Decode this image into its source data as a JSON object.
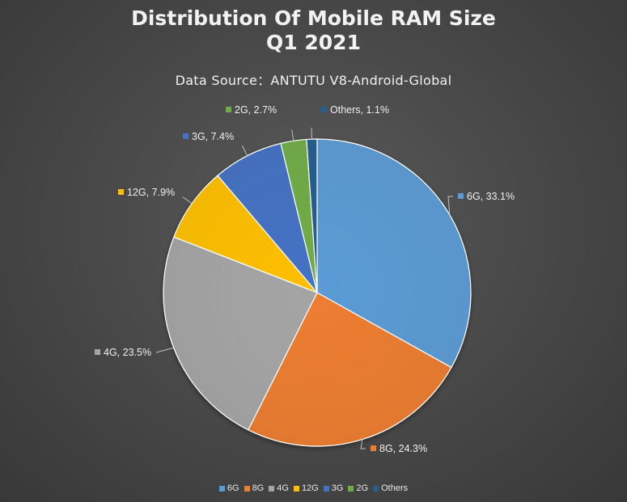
{
  "chart_data": {
    "type": "pie",
    "title_line1": "Distribution Of Mobile RAM Size",
    "title_line2": "Q1 2021",
    "subtitle": "Data Source：ANTUTU V8-Android-Global",
    "legend_position": "bottom",
    "slices": [
      {
        "name": "6G",
        "value": 33.1,
        "label": "6G, 33.1%",
        "color": "#5b9bd5"
      },
      {
        "name": "8G",
        "value": 24.3,
        "label": "8G, 24.3%",
        "color": "#ed7d31"
      },
      {
        "name": "4G",
        "value": 23.5,
        "label": "4G, 23.5%",
        "color": "#a5a5a5"
      },
      {
        "name": "12G",
        "value": 7.9,
        "label": "12G, 7.9%",
        "color": "#ffc000"
      },
      {
        "name": "3G",
        "value": 7.4,
        "label": "3G, 7.4%",
        "color": "#4472c4"
      },
      {
        "name": "2G",
        "value": 2.7,
        "label": "2G, 2.7%",
        "color": "#70ad47"
      },
      {
        "name": "Others",
        "value": 1.1,
        "label": "Others, 1.1%",
        "color": "#255e91"
      }
    ]
  }
}
